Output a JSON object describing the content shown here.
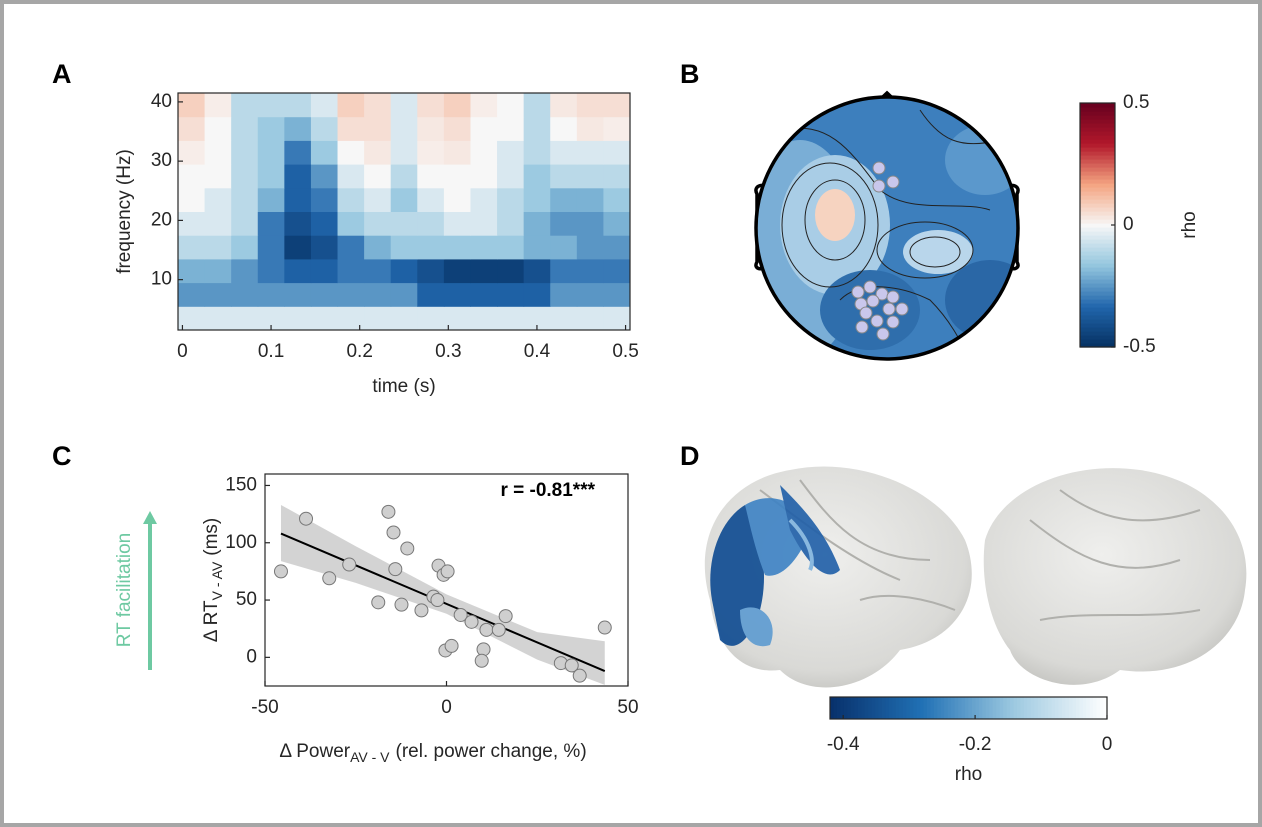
{
  "chart_data": [
    {
      "type": "heatmap",
      "panel": "A",
      "xlabel": "time (s)",
      "ylabel": "frequency (Hz)",
      "xlim": [
        -0.005,
        0.505
      ],
      "ylim": [
        1.5,
        41.5
      ],
      "xticks": [
        0,
        0.1,
        0.2,
        0.3,
        0.4,
        0.5
      ],
      "yticks": [
        10,
        20,
        30,
        40
      ],
      "clim": [
        -0.5,
        0.5
      ],
      "colormap": [
        "#053061",
        "#2166ac",
        "#92c5de",
        "#f7f7f7",
        "#f4a582",
        "#b2182b",
        "#67001f"
      ],
      "xbins": [
        -0.005,
        0.025,
        0.055,
        0.085,
        0.115,
        0.145,
        0.175,
        0.205,
        0.235,
        0.265,
        0.295,
        0.325,
        0.355,
        0.385,
        0.415,
        0.445,
        0.475,
        0.505
      ],
      "ybins": [
        1.5,
        5.5,
        9.5,
        13.5,
        17.5,
        21.5,
        25.5,
        29.5,
        33.5,
        37.5,
        41.5
      ],
      "z": [
        [
          -0.05,
          -0.05,
          -0.05,
          -0.05,
          -0.05,
          -0.05,
          -0.05,
          -0.05,
          -0.05,
          -0.05,
          -0.05,
          -0.05,
          -0.05,
          -0.05,
          -0.05,
          -0.05,
          -0.05
        ],
        [
          -0.25,
          -0.25,
          -0.25,
          -0.25,
          -0.25,
          -0.25,
          -0.25,
          -0.25,
          -0.25,
          -0.35,
          -0.35,
          -0.35,
          -0.35,
          -0.35,
          -0.25,
          -0.25,
          -0.25
        ],
        [
          -0.2,
          -0.2,
          -0.25,
          -0.3,
          -0.35,
          -0.35,
          -0.3,
          -0.3,
          -0.35,
          -0.4,
          -0.45,
          -0.45,
          -0.45,
          -0.4,
          -0.3,
          -0.3,
          -0.3
        ],
        [
          -0.1,
          -0.1,
          -0.15,
          -0.3,
          -0.45,
          -0.4,
          -0.3,
          -0.2,
          -0.15,
          -0.15,
          -0.15,
          -0.15,
          -0.15,
          -0.2,
          -0.2,
          -0.25,
          -0.25
        ],
        [
          -0.05,
          -0.05,
          -0.1,
          -0.3,
          -0.4,
          -0.35,
          -0.15,
          -0.1,
          -0.1,
          -0.1,
          -0.05,
          -0.05,
          -0.1,
          -0.2,
          -0.25,
          -0.25,
          -0.2
        ],
        [
          0,
          -0.05,
          -0.1,
          -0.2,
          -0.35,
          -0.3,
          -0.1,
          -0.05,
          -0.15,
          -0.05,
          0,
          -0.05,
          -0.1,
          -0.15,
          -0.2,
          -0.2,
          -0.15
        ],
        [
          0,
          0,
          -0.1,
          -0.15,
          -0.35,
          -0.25,
          -0.05,
          0,
          -0.1,
          0,
          0,
          0,
          -0.05,
          -0.15,
          -0.1,
          -0.1,
          -0.1
        ],
        [
          0.02,
          0,
          -0.1,
          -0.15,
          -0.3,
          -0.15,
          0,
          0.03,
          -0.05,
          0.02,
          0.03,
          0,
          -0.05,
          -0.1,
          -0.05,
          -0.05,
          -0.05
        ],
        [
          0.05,
          0,
          -0.1,
          -0.15,
          -0.2,
          -0.1,
          0.05,
          0.05,
          -0.05,
          0.03,
          0.05,
          0,
          0,
          -0.1,
          0,
          0.03,
          0.02
        ],
        [
          0.08,
          0.02,
          -0.1,
          -0.1,
          -0.1,
          -0.05,
          0.08,
          0.05,
          -0.05,
          0.05,
          0.08,
          0.02,
          0,
          -0.1,
          0.03,
          0.05,
          0.05
        ]
      ]
    },
    {
      "type": "topoplot",
      "panel": "B",
      "colorbar": {
        "label": "rho",
        "ylim": [
          -0.5,
          0.5
        ],
        "yticks": [
          0.5,
          0,
          -0.5
        ],
        "colormap": [
          "#053061",
          "#2166ac",
          "#92c5de",
          "#f7f7f7",
          "#f4a582",
          "#b2182b",
          "#67001f"
        ]
      }
    },
    {
      "type": "scatter",
      "panel": "C",
      "xlabel": {
        "text": "Δ Power",
        "subscript": "AV - V",
        "unit": "(rel. power change, %)"
      },
      "ylabel": {
        "text": "Δ RT",
        "subscript": "V - AV",
        "unit": "(ms)"
      },
      "side_label": "RT facilitation",
      "side_color": "#6ec9a2",
      "annotation": "r = -0.81***",
      "xlim": [
        -50,
        50
      ],
      "ylim": [
        -25,
        160
      ],
      "xticks": [
        -50,
        0,
        50
      ],
      "yticks": [
        0,
        50,
        100,
        150
      ],
      "color": "#cfcfcf",
      "x": [
        -45.6,
        -38.7,
        -32.3,
        -26.8,
        -16.0,
        -14.6,
        -18.8,
        -14.1,
        -12.4,
        -10.8,
        -6.9,
        -3.6,
        -2.2,
        -0.8,
        0.3,
        -2.5,
        -0.3,
        1.4,
        3.9,
        6.9,
        11.0,
        14.4,
        16.3,
        10.2,
        9.7,
        31.5,
        34.5,
        36.7,
        43.6
      ],
      "values": [
        75,
        121,
        69,
        81,
        127,
        109,
        48,
        77,
        46,
        95,
        41,
        53,
        80,
        72,
        75,
        50,
        6,
        10,
        37,
        31,
        24,
        24,
        36,
        7,
        -3,
        -5,
        -7,
        -16,
        26
      ],
      "fit": {
        "x": [
          -45.6,
          43.6
        ],
        "y": [
          108,
          -12
        ]
      },
      "ci": {
        "x": [
          -45.6,
          -25,
          0,
          25,
          43.6
        ],
        "upper": [
          133,
          97,
          55,
          22,
          14
        ],
        "lower": [
          84,
          65,
          38,
          -2,
          -24
        ]
      }
    },
    {
      "type": "brain",
      "panel": "D",
      "colorbar": {
        "label": "rho",
        "xlim": [
          -0.42,
          0
        ],
        "xticks": [
          -0.4,
          -0.2,
          0
        ],
        "colormap": [
          "#08306b",
          "#2171b5",
          "#9ecae1",
          "#ffffff"
        ]
      }
    }
  ]
}
